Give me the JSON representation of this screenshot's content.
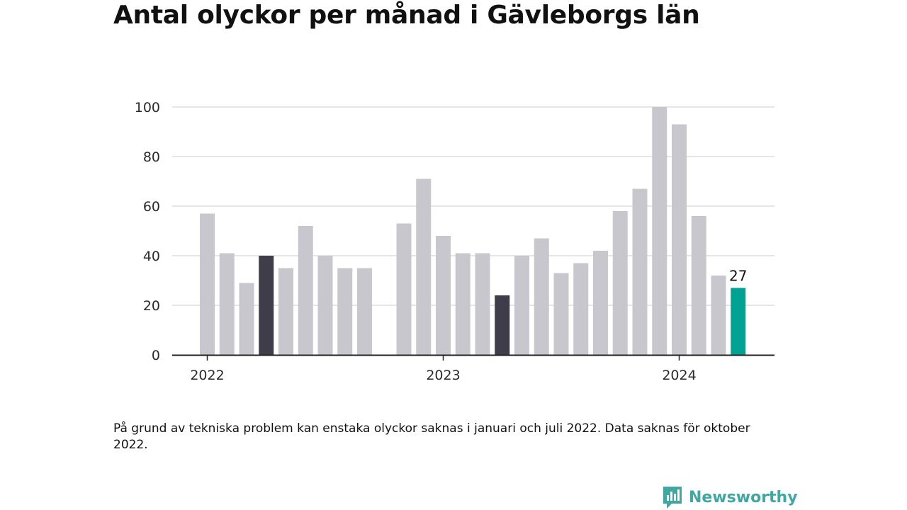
{
  "title": "Antal olyckor per månad i Gävleborgs län",
  "note": "På grund av tekniska problem kan enstaka olyckor saknas i januari och juli 2022. Data saknas för oktober 2022.",
  "brand": {
    "name": "Newsworthy",
    "icon": "newsworthy-logo-icon"
  },
  "colors": {
    "default_bar": "#c8c7ce",
    "highlight_bar": "#3f3d4a",
    "latest_bar": "#00a293",
    "grid": "#dedede",
    "axis": "#222222"
  },
  "chart_data": {
    "type": "bar",
    "title": "Antal olyckor per månad i Gävleborgs län",
    "xlabel": "",
    "ylabel": "",
    "ylim": [
      0,
      100
    ],
    "yticks": [
      0,
      20,
      40,
      60,
      80,
      100
    ],
    "xticks": [
      {
        "label": "2022",
        "month": "2022-01"
      },
      {
        "label": "2023",
        "month": "2023-01"
      },
      {
        "label": "2024",
        "month": "2024-01"
      }
    ],
    "grid": true,
    "months": [
      "2022-01",
      "2022-02",
      "2022-03",
      "2022-04",
      "2022-05",
      "2022-06",
      "2022-07",
      "2022-08",
      "2022-09",
      "2022-10",
      "2022-11",
      "2022-12",
      "2023-01",
      "2023-02",
      "2023-03",
      "2023-04",
      "2023-05",
      "2023-06",
      "2023-07",
      "2023-08",
      "2023-09",
      "2023-10",
      "2023-11",
      "2023-12",
      "2024-01",
      "2024-02",
      "2024-03",
      "2024-04"
    ],
    "values": [
      57,
      41,
      29,
      40,
      35,
      52,
      40,
      35,
      35,
      null,
      53,
      71,
      48,
      41,
      41,
      24,
      40,
      47,
      33,
      37,
      42,
      58,
      67,
      100,
      93,
      56,
      32,
      27
    ],
    "highlight": [
      "2022-04",
      "2023-04"
    ],
    "latest": {
      "month": "2024-04",
      "label": "27"
    }
  }
}
